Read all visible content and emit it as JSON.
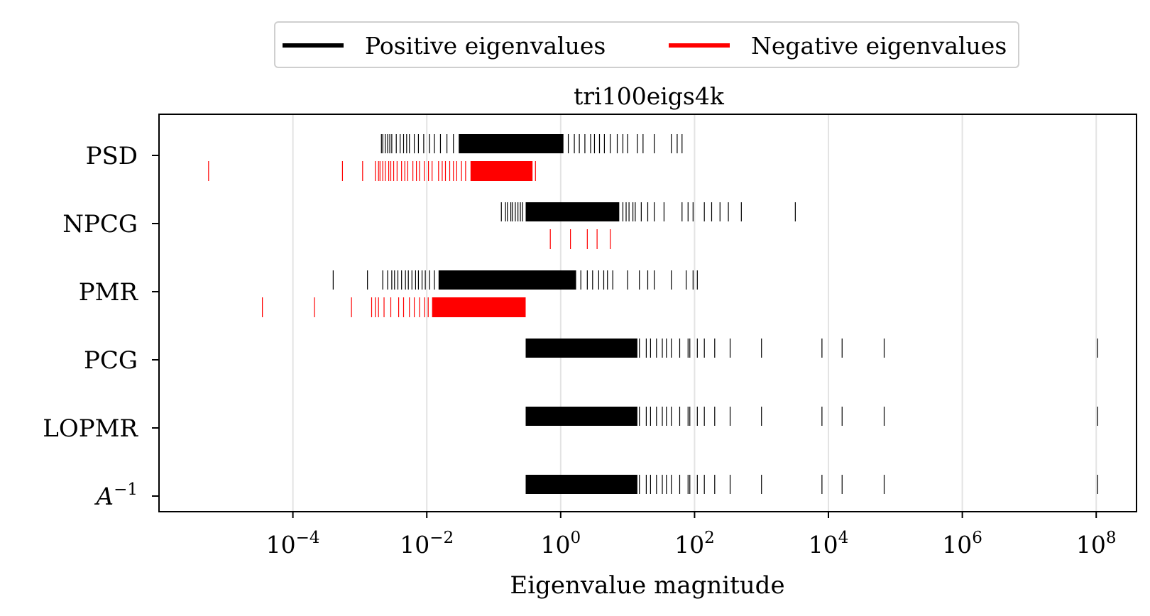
{
  "chart_data": {
    "type": "event-plot",
    "title": "tri100eigs4k",
    "xlabel": "Eigenvalue magnitude",
    "ylabel": "",
    "xscale": "log",
    "xlim": [
      1e-06,
      400000000.0
    ],
    "x_tick_labels": [
      {
        "value": 0.0001,
        "base": "10",
        "exp": "−4"
      },
      {
        "value": 0.01,
        "base": "10",
        "exp": "−2"
      },
      {
        "value": 1,
        "base": "10",
        "exp": "0"
      },
      {
        "value": 100,
        "base": "10",
        "exp": "2"
      },
      {
        "value": 10000,
        "base": "10",
        "exp": "4"
      },
      {
        "value": 1000000,
        "base": "10",
        "exp": "6"
      },
      {
        "value": 100000000,
        "base": "10",
        "exp": "8"
      }
    ],
    "grid": "vertical at major ticks",
    "legend_position": "top-center",
    "legend": [
      {
        "label": "Positive eigenvalues",
        "color": "#000000"
      },
      {
        "label": "Negative eigenvalues",
        "color": "#ff0000"
      }
    ],
    "series": [
      {
        "name": "PSD",
        "label_main": "PSD",
        "label_sup": "",
        "positive": {
          "dense": [
            0.03,
            1.1
          ],
          "scatter": [
            0.0021,
            0.0022,
            0.0024,
            0.0026,
            0.0028,
            0.003,
            0.0035,
            0.004,
            0.0045,
            0.005,
            0.0055,
            0.0065,
            0.0075,
            0.009,
            0.011,
            0.013,
            0.016,
            0.02,
            0.025,
            1.3,
            1.6,
            1.9,
            2.3,
            2.8,
            3.2,
            3.8,
            4.5,
            5.5,
            7,
            8.5,
            10,
            14,
            17,
            25,
            45,
            55,
            65
          ]
        },
        "negative": {
          "dense": [
            0.045,
            0.38
          ],
          "scatter": [
            5.5e-06,
            0.00055,
            0.0011,
            0.0017,
            0.0019,
            0.002,
            0.0022,
            0.0024,
            0.0027,
            0.0029,
            0.0032,
            0.0036,
            0.0042,
            0.0047,
            0.0052,
            0.0062,
            0.007,
            0.0078,
            0.0092,
            0.0106,
            0.012,
            0.015,
            0.017,
            0.019,
            0.022,
            0.025,
            0.028,
            0.033,
            0.038,
            0.42
          ]
        }
      },
      {
        "name": "NPCG",
        "label_main": "NPCG",
        "label_sup": "",
        "positive": {
          "dense": [
            0.3,
            7.5
          ],
          "scatter": [
            0.13,
            0.15,
            0.16,
            0.18,
            0.19,
            0.21,
            0.23,
            0.25,
            0.27,
            8.5,
            9.5,
            10.5,
            12,
            13,
            16,
            20,
            25,
            35,
            65,
            80,
            95,
            140,
            180,
            240,
            320,
            500,
            3200
          ]
        },
        "negative": {
          "dense": [],
          "scatter": [
            0.7,
            1.4,
            2.5,
            3.5,
            5.5
          ]
        }
      },
      {
        "name": "PMR",
        "label_main": "PMR",
        "label_sup": "",
        "positive": {
          "dense": [
            0.015,
            1.7
          ],
          "scatter": [
            0.0004,
            0.0013,
            0.0022,
            0.0026,
            0.003,
            0.0033,
            0.0037,
            0.0042,
            0.0048,
            0.0053,
            0.006,
            0.0068,
            0.0075,
            0.0085,
            0.0095,
            0.011,
            0.013,
            2,
            2.5,
            3,
            3.7,
            4.4,
            5,
            6,
            10,
            15,
            20,
            25,
            45,
            75,
            95,
            110
          ]
        },
        "negative": {
          "dense": [
            0.012,
            0.3
          ],
          "scatter": [
            3.5e-05,
            0.00021,
            0.00075,
            0.0015,
            0.0017,
            0.0019,
            0.0023,
            0.0029,
            0.0038,
            0.0045,
            0.0055,
            0.0065,
            0.0078,
            0.0093,
            0.0105
          ]
        }
      },
      {
        "name": "PCG",
        "label_main": "PCG",
        "label_sup": "",
        "positive": {
          "dense": [
            0.3,
            14
          ],
          "scatter": [
            15,
            19,
            22,
            27,
            33,
            38,
            45,
            60,
            80,
            85,
            110,
            140,
            200,
            340,
            1000,
            8000,
            16000,
            68000,
            105000000
          ]
        },
        "negative": {
          "dense": [],
          "scatter": []
        }
      },
      {
        "name": "LOPMR",
        "label_main": "LOPMR",
        "label_sup": "",
        "positive": {
          "dense": [
            0.3,
            14
          ],
          "scatter": [
            15,
            19,
            22,
            27,
            33,
            38,
            45,
            60,
            80,
            85,
            110,
            140,
            200,
            340,
            1000,
            8000,
            16000,
            68000,
            105000000
          ]
        },
        "negative": {
          "dense": [],
          "scatter": []
        }
      },
      {
        "name": "A^-1",
        "label_main": "A",
        "label_sup": "−1",
        "positive": {
          "dense": [
            0.3,
            14
          ],
          "scatter": [
            15,
            19,
            22,
            27,
            33,
            38,
            45,
            60,
            80,
            85,
            110,
            140,
            200,
            340,
            1000,
            8000,
            16000,
            68000,
            105000000
          ]
        },
        "negative": {
          "dense": [],
          "scatter": []
        }
      }
    ]
  }
}
